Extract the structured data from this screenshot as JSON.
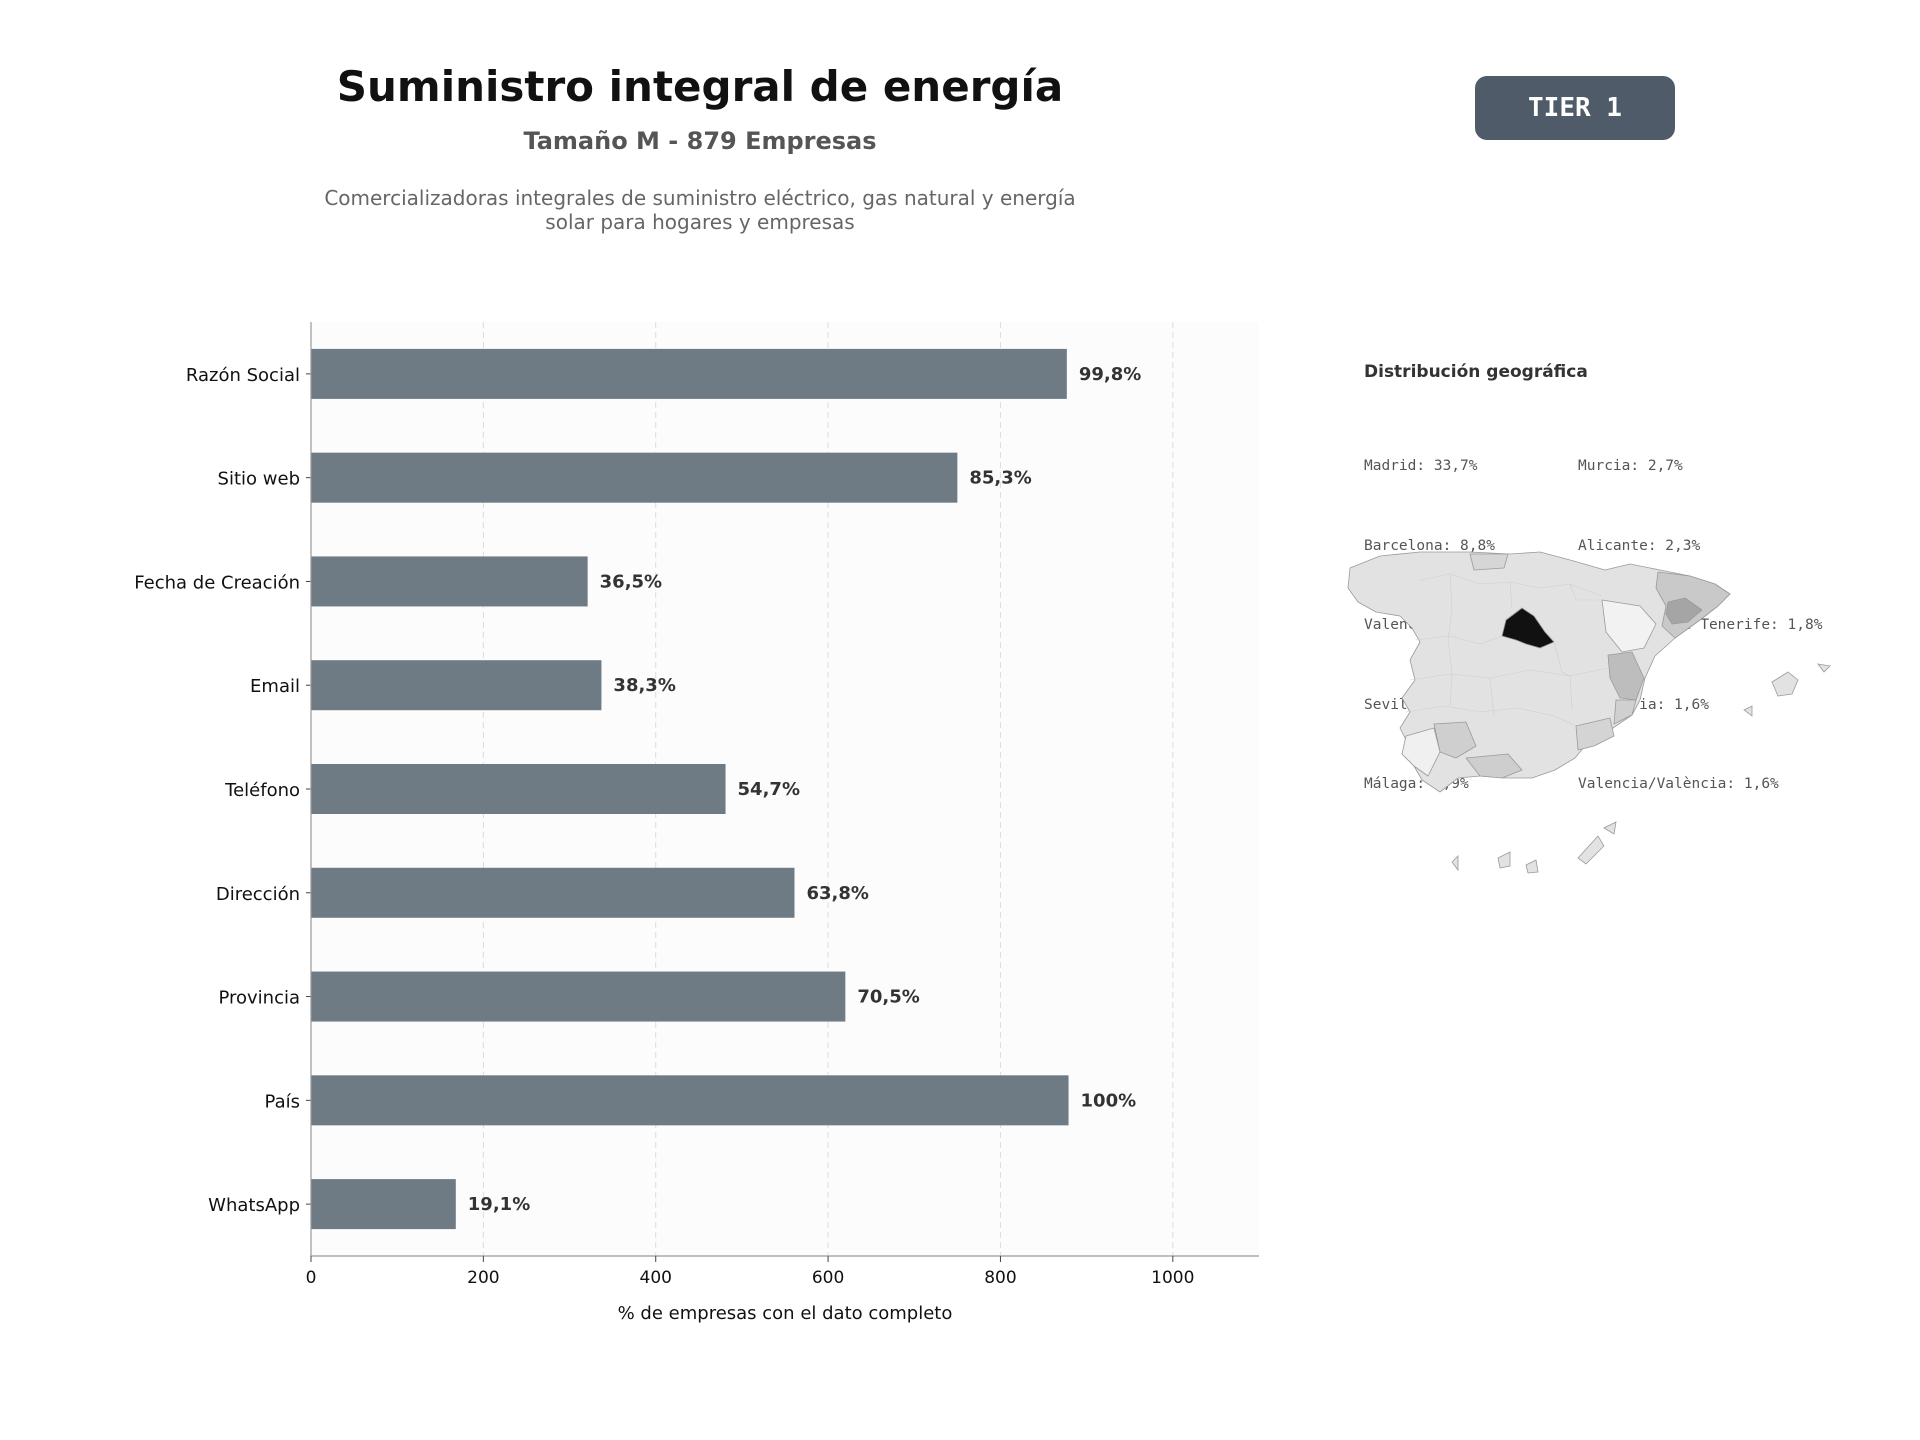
{
  "header": {
    "title": "Suministro integral de energía",
    "subtitle": "Tamaño M - 879 Empresas",
    "description": "Comercializadoras integrales de suministro eléctrico, gas natural y energía solar para hogares y empresas",
    "tier": "TIER 1"
  },
  "chart_data": {
    "type": "bar",
    "orientation": "horizontal",
    "categories": [
      "Razón Social",
      "Sitio web",
      "Fecha de Creación",
      "Email",
      "Teléfono",
      "Dirección",
      "Provincia",
      "País",
      "WhatsApp"
    ],
    "values": [
      877,
      750,
      321,
      337,
      481,
      561,
      620,
      879,
      168
    ],
    "data_labels": [
      "99,8%",
      "85,3%",
      "36,5%",
      "38,3%",
      "54,7%",
      "63,8%",
      "70,5%",
      "100%",
      "19,1%"
    ],
    "xlabel": "% de empresas con el dato completo",
    "xlim": [
      0,
      1100
    ],
    "xticks": [
      0,
      200,
      400,
      600,
      800,
      1000
    ],
    "grid": "vertical dashed",
    "bar_color": "#6e7a84"
  },
  "geo": {
    "title": "Distribución geográfica",
    "left_column": [
      "Madrid: 33,7%",
      "Barcelona: 8,8%",
      "Valencia: 5,8%",
      "Sevilla: 3,2%",
      "Málaga: 2,9%"
    ],
    "right_column": [
      "Murcia: 2,7%",
      "Alicante: 2,3%",
      "Santa Cruz de Tenerife: 1,8%",
      "Cantabria: 1,6%",
      "Valencia/València: 1,6%"
    ]
  }
}
